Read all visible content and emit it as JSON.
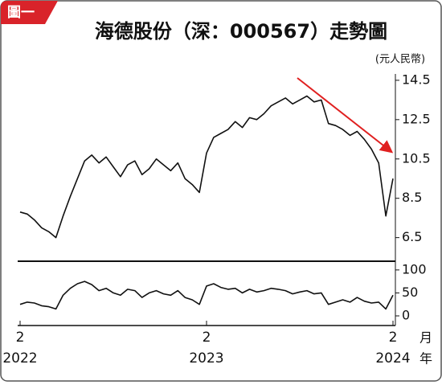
{
  "chart_data": [
    {
      "type": "line",
      "badge": "圖一",
      "title": "海德股份（深：000567）走勢圖",
      "y_label": "(元人民幣)",
      "x": [
        0,
        1,
        2,
        3,
        4,
        5,
        6,
        7,
        8,
        9,
        10,
        11,
        12,
        13,
        14,
        15,
        16,
        17,
        18,
        19,
        20,
        21,
        22,
        23,
        24,
        25,
        26,
        27,
        28,
        29,
        30,
        31,
        32,
        33,
        34,
        35,
        36,
        37,
        38,
        39,
        40,
        41,
        42,
        43,
        44,
        45,
        46,
        47,
        48,
        49,
        50,
        51,
        52
      ],
      "series": [
        {
          "color": "#111111",
          "values": [
            7.8,
            7.7,
            7.4,
            7.0,
            6.8,
            6.5,
            7.6,
            8.6,
            9.5,
            10.4,
            10.7,
            10.3,
            10.6,
            10.1,
            9.6,
            10.2,
            10.4,
            9.7,
            10.0,
            10.5,
            10.2,
            9.9,
            10.3,
            9.5,
            9.2,
            8.8,
            10.8,
            11.6,
            11.8,
            12.0,
            12.4,
            12.1,
            12.6,
            12.5,
            12.8,
            13.2,
            13.4,
            13.6,
            13.3,
            13.5,
            13.7,
            13.4,
            13.5,
            12.3,
            12.2,
            12.0,
            11.7,
            11.9,
            11.5,
            11.0,
            10.3,
            7.6,
            9.5
          ]
        }
      ],
      "xlim": [
        0,
        52
      ],
      "ylim": [
        5.3,
        14.7
      ],
      "yticks": [
        6.5,
        8.5,
        10.5,
        12.5,
        14.5
      ]
    },
    {
      "type": "line",
      "x": [
        0,
        1,
        2,
        3,
        4,
        5,
        6,
        7,
        8,
        9,
        10,
        11,
        12,
        13,
        14,
        15,
        16,
        17,
        18,
        19,
        20,
        21,
        22,
        23,
        24,
        25,
        26,
        27,
        28,
        29,
        30,
        31,
        32,
        33,
        34,
        35,
        36,
        37,
        38,
        39,
        40,
        41,
        42,
        43,
        44,
        45,
        46,
        47,
        48,
        49,
        50,
        51,
        52
      ],
      "series": [
        {
          "color": "#111111",
          "values": [
            25,
            30,
            28,
            22,
            20,
            15,
            45,
            60,
            70,
            75,
            68,
            55,
            60,
            50,
            45,
            58,
            55,
            40,
            50,
            55,
            48,
            45,
            55,
            40,
            35,
            25,
            65,
            70,
            62,
            58,
            60,
            50,
            58,
            52,
            55,
            60,
            58,
            55,
            48,
            52,
            55,
            48,
            50,
            25,
            30,
            35,
            30,
            40,
            32,
            28,
            30,
            15,
            45
          ]
        }
      ],
      "xlim": [
        0,
        52
      ],
      "ylim": [
        -21,
        119
      ],
      "yticks": [
        0,
        50,
        100
      ],
      "xticks": [
        {
          "value": 0,
          "label": "2"
        },
        {
          "value": 26,
          "label": "2"
        },
        {
          "value": 52,
          "label": "2"
        }
      ],
      "x_label": "月",
      "year_labels": [
        "2022",
        "2023",
        "2024"
      ],
      "year_axis_label": "年"
    }
  ]
}
